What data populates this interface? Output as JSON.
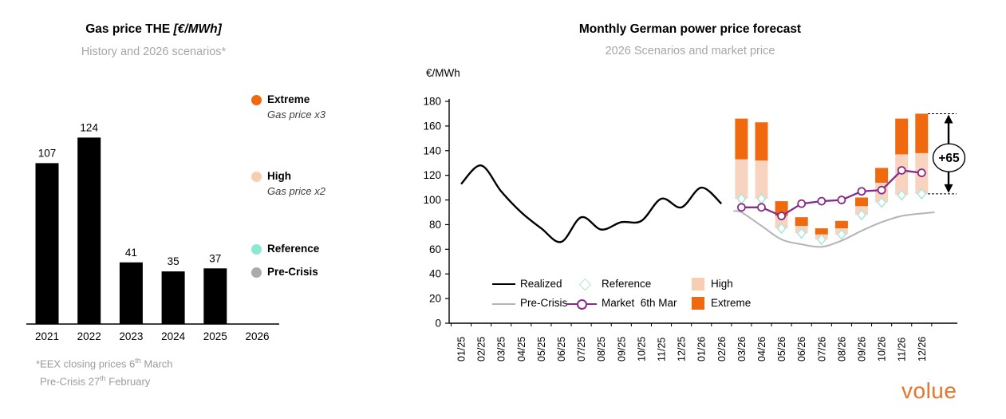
{
  "left_chart": {
    "title": "Gas price THE",
    "title_unit": "[€/MWh]",
    "subtitle": "History and 2026 scenarios*",
    "legend": [
      {
        "label": "Extreme",
        "sublabel": "Gas price x3",
        "color": "#F0690E"
      },
      {
        "label": "High",
        "sublabel": "Gas price x2",
        "color": "#F8CEB2"
      },
      {
        "label": "Reference",
        "sublabel": "",
        "color": "#8CE8D2"
      },
      {
        "label": "Pre-Crisis",
        "sublabel": "",
        "color": "#ABABAB"
      }
    ],
    "footnote_line1": {
      "pre": "*EEX closing prices 6",
      "sup": "th",
      "post": " March"
    },
    "footnote_line2": {
      "pre": "Pre-Crisis 27",
      "sup": "th",
      "post": " February"
    }
  },
  "right_chart": {
    "title": "Monthly German power price forecast",
    "subtitle": "2026 Scenarios and market price",
    "y_axis_label": "€/MWh",
    "legend": {
      "realized": "Realized",
      "reference": "Reference",
      "high": "High",
      "precrisis": "Pre-Crisis",
      "market": "Market  6th Mar",
      "extreme": "Extreme"
    }
  },
  "logo": {
    "text": "volue",
    "color": "#E5752C"
  },
  "chart_data": [
    {
      "id": "gas-price-history",
      "type": "bar",
      "title": "Gas price THE [€/MWh]",
      "subtitle": "History and 2026 scenarios*",
      "categories": [
        "2021",
        "2022",
        "2023",
        "2024",
        "2025",
        "2026"
      ],
      "values": [
        107,
        124,
        41,
        35,
        37,
        null
      ],
      "bar_color": "#000000",
      "ylim": [
        0,
        135
      ],
      "grid": false
    },
    {
      "id": "german-power-forecast",
      "type": "combo-line-floating-bar",
      "title": "Monthly German power price forecast",
      "subtitle": "2026 Scenarios and market price",
      "ylabel": "€/MWh",
      "ylim": [
        0,
        180
      ],
      "ytick_step": 20,
      "grid": false,
      "x": [
        "01/25",
        "02/25",
        "03/25",
        "04/25",
        "05/25",
        "06/25",
        "07/25",
        "08/25",
        "09/25",
        "10/25",
        "11/25",
        "12/25",
        "01/26",
        "02/26",
        "03/26",
        "04/26",
        "05/26",
        "06/26",
        "07/26",
        "08/26",
        "09/26",
        "10/26",
        "11/26",
        "12/26"
      ],
      "series": [
        {
          "name": "Realized",
          "type": "line-smooth",
          "color": "#000000",
          "x_start_index": 0,
          "values": [
            113,
            128,
            107,
            90,
            77,
            66,
            86,
            76,
            82,
            83,
            101,
            94,
            110,
            97
          ]
        },
        {
          "name": "Pre-Crisis",
          "type": "line-smooth",
          "color": "#B4B4B6",
          "x_start_index": 14,
          "values": [
            90,
            79,
            68,
            64,
            62,
            67,
            75,
            82,
            87,
            89
          ]
        },
        {
          "name": "Reference",
          "type": "diamond-marker",
          "color": "#AEE7DA",
          "x_start_index": 14,
          "values": [
            101,
            101,
            77,
            73,
            68,
            72,
            88,
            98,
            104,
            105
          ]
        },
        {
          "name": "High",
          "type": "bar-segment",
          "base_series": "Reference",
          "color": "#F8D4C0",
          "x_start_index": 14,
          "values": [
            133,
            132,
            87,
            79,
            72,
            77,
            95,
            114,
            137,
            138
          ]
        },
        {
          "name": "Extreme",
          "type": "bar-segment",
          "base_series": "High",
          "color": "#F0690E",
          "x_start_index": 14,
          "values": [
            166,
            163,
            99,
            86,
            77,
            83,
            102,
            126,
            166,
            170
          ]
        },
        {
          "name": "Market 6th Mar",
          "type": "line-markers",
          "color": "#872C87",
          "x_start_index": 14,
          "values": [
            94,
            94,
            87,
            97,
            99,
            100,
            107,
            108,
            124,
            122
          ]
        }
      ],
      "annotation": {
        "label": "+65",
        "at_x": "12/26",
        "from_value": 105,
        "to_value": 170
      }
    }
  ]
}
